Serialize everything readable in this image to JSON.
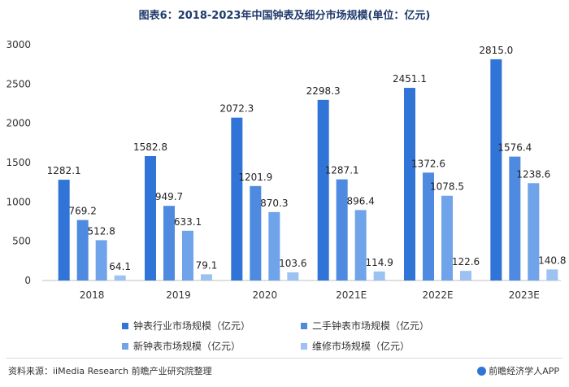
{
  "chart_data": {
    "type": "bar",
    "title": "图表6：2018-2023年中国钟表及细分市场规模(单位：亿元)",
    "categories": [
      "2018",
      "2019",
      "2020",
      "2021E",
      "2022E",
      "2023E"
    ],
    "series": [
      {
        "name": "钟表行业市场规模（亿元）",
        "color": "#2f74d6",
        "values": [
          1282.1,
          1582.8,
          2072.3,
          2298.3,
          2451.1,
          2815.0
        ]
      },
      {
        "name": "二手钟表市场规模（亿元）",
        "color": "#4d8ae0",
        "values": [
          769.2,
          949.7,
          1201.9,
          1287.1,
          1372.6,
          1576.4
        ]
      },
      {
        "name": "新钟表市场规模（亿元）",
        "color": "#6fa3ea",
        "values": [
          512.8,
          633.1,
          870.3,
          896.4,
          1078.5,
          1238.6
        ]
      },
      {
        "name": "维修市场规模（亿元）",
        "color": "#9cc2f2",
        "values": [
          64.1,
          79.1,
          103.6,
          114.9,
          122.6,
          140.8
        ]
      }
    ],
    "data_labels": [
      [
        "1282.1",
        "1582.8",
        "2072.3",
        "2298.3",
        "2451.1",
        "2815.0"
      ],
      [
        "769.2",
        "949.7",
        "1201.9",
        "1287.1",
        "1372.6",
        "1576.4"
      ],
      [
        "512.8",
        "633.1",
        "870.3",
        "896.4",
        "1078.5",
        "1238.6"
      ],
      [
        "64.1",
        "79.1",
        "103.6",
        "114.9",
        "122.6",
        "140.8"
      ]
    ],
    "ylim": [
      0,
      3000
    ],
    "yticks": [
      "0",
      "500",
      "1000",
      "1500",
      "2000",
      "2500",
      "3000"
    ],
    "grid": false,
    "legend_placement": "bottom"
  },
  "footer": {
    "source": "资料来源：iiMedia Research 前瞻产业研究院整理",
    "brand": "前瞻经济学人APP"
  }
}
